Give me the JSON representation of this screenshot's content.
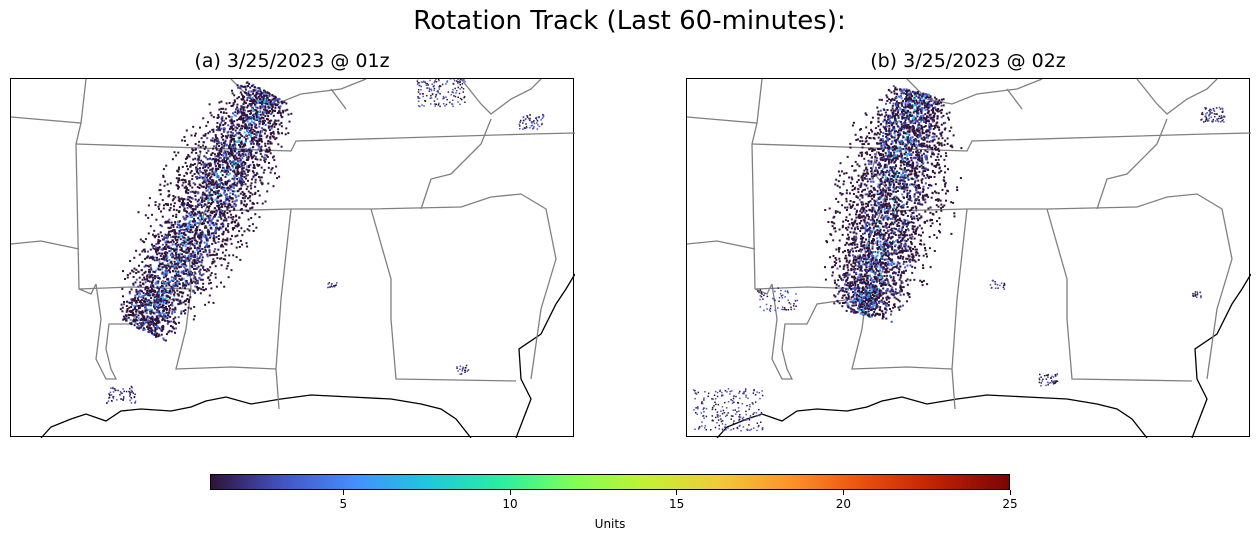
{
  "title": "Rotation Track (Last 60-minutes):",
  "panels": [
    {
      "title": "(a) 3/25/2023 @ 01z"
    },
    {
      "title": "(b) 3/25/2023 @ 02z"
    }
  ],
  "colorbar": {
    "label": "Units",
    "range": [
      1,
      25
    ],
    "ticks": [
      "5",
      "10",
      "15",
      "20",
      "25"
    ],
    "colors": [
      "#30123b",
      "#4454c4",
      "#4490fe",
      "#1fc8de",
      "#29efa2",
      "#7eff55",
      "#c3f134",
      "#f1ca3a",
      "#fe922a",
      "#ea4f0d",
      "#be2102",
      "#7a0403"
    ]
  }
}
